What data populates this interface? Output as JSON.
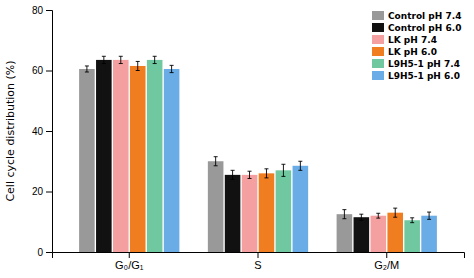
{
  "chart_data": {
    "type": "bar",
    "categories": [
      "G₀/G₁",
      "S",
      "G₂/M"
    ],
    "series": [
      {
        "name": "Control pH 7.4",
        "color": "#999999",
        "values": [
          60.5,
          30.0,
          12.5
        ],
        "errors": [
          1.0,
          1.5,
          1.5
        ]
      },
      {
        "name": "Control pH 6.0",
        "color": "#111111",
        "values": [
          63.5,
          25.5,
          11.5
        ],
        "errors": [
          1.2,
          1.5,
          1.0
        ]
      },
      {
        "name": "LK pH 7.4",
        "color": "#f4a0a0",
        "values": [
          63.5,
          25.5,
          12.0
        ],
        "errors": [
          1.2,
          1.2,
          0.8
        ]
      },
      {
        "name": "LK pH 6.0",
        "color": "#f07d20",
        "values": [
          61.5,
          26.0,
          13.0
        ],
        "errors": [
          1.5,
          1.5,
          1.5
        ]
      },
      {
        "name": "L9H5-1 pH 7.4",
        "color": "#70c8a0",
        "values": [
          63.5,
          27.0,
          10.5
        ],
        "errors": [
          1.2,
          2.0,
          0.8
        ]
      },
      {
        "name": "L9H5-1 pH 6.0",
        "color": "#6aace6",
        "values": [
          60.5,
          28.5,
          12.0
        ],
        "errors": [
          1.2,
          1.5,
          1.2
        ]
      }
    ],
    "y_label": "Cell cycle distribution (%)",
    "ylim": [
      0,
      80
    ],
    "yticks": [
      0,
      20,
      40,
      60,
      80
    ],
    "grid": false,
    "legend": "upper-right"
  }
}
